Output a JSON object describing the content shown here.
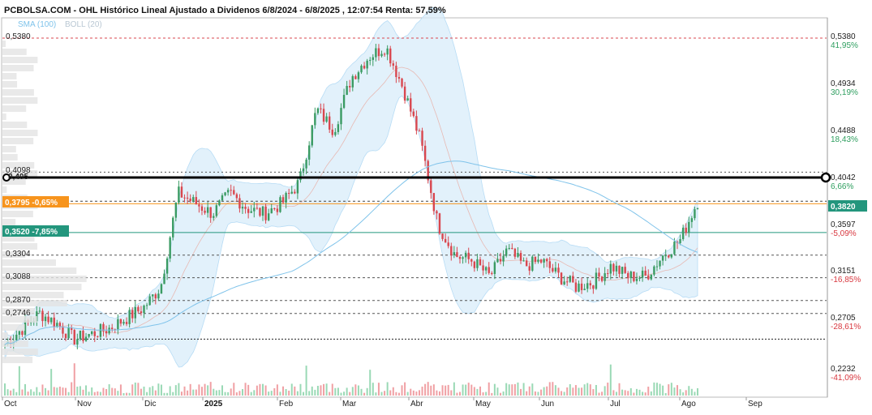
{
  "title": "PCBOLSA.COM - OHL Histórico Lineal Ajustado a Dividenos 6/8/2024 - 6/8/2025 , 12:07:54 Renta: 57,59%",
  "legend": {
    "sma": "SMA (100)",
    "boll": "BOLL (20)"
  },
  "colors": {
    "up": "#3a9b63",
    "down": "#d9474f",
    "band": "#d8ecfa",
    "sma": "#7fc3ea",
    "midband": "#e7b9b3",
    "orange": "#f7941d",
    "teal": "#23967d",
    "volUp": "#9ad9b5",
    "volDown": "#f0a0a4"
  },
  "chart_data": {
    "type": "candlestick",
    "period": {
      "start": "6/8/2024",
      "end": "6/8/2025"
    },
    "y_range": [
      0.22,
      0.56
    ],
    "right_axis": [
      {
        "value": "0,5380",
        "pct": "41,95%",
        "sign": "up"
      },
      {
        "value": "0,4934",
        "pct": "30,19%",
        "sign": "up"
      },
      {
        "value": "0,4488",
        "pct": "18,43%",
        "sign": "up"
      },
      {
        "value": "0,4042",
        "pct": "6,66%",
        "sign": "up"
      },
      {
        "value": "0,3597",
        "pct": "-5,09%",
        "sign": "down"
      },
      {
        "value": "0,3151",
        "pct": "-16,85%",
        "sign": "down"
      },
      {
        "value": "0,2705",
        "pct": "-28,61%",
        "sign": "down"
      },
      {
        "value": "0,2232",
        "pct": "-41,09%",
        "sign": "down"
      }
    ],
    "left_levels": [
      "0,5380",
      "0,4098",
      "0,405",
      "0,3304",
      "0,3088",
      "0,2870",
      "0,2746"
    ],
    "current_price": "0,3820",
    "tag_orange": "0,3795 -0,65%",
    "tag_teal": "0,3520 -7,85%",
    "months": [
      {
        "label": "Oct"
      },
      {
        "label": "Nov"
      },
      {
        "label": "Dic"
      },
      {
        "label": "2025",
        "bold": true
      },
      {
        "label": "Feb"
      },
      {
        "label": "Mar"
      },
      {
        "label": "Abr"
      },
      {
        "label": "May"
      },
      {
        "label": "Jun"
      },
      {
        "label": "Jul"
      },
      {
        "label": "Ago"
      },
      {
        "label": "Sep"
      }
    ],
    "ohlc_anchor_prices": [
      0.245,
      0.26,
      0.275,
      0.265,
      0.25,
      0.255,
      0.26,
      0.27,
      0.28,
      0.3,
      0.39,
      0.38,
      0.37,
      0.39,
      0.375,
      0.37,
      0.38,
      0.4,
      0.47,
      0.45,
      0.5,
      0.52,
      0.53,
      0.49,
      0.44,
      0.36,
      0.33,
      0.325,
      0.31,
      0.335,
      0.32,
      0.325,
      0.31,
      0.3,
      0.305,
      0.32,
      0.31,
      0.31,
      0.33,
      0.345,
      0.382
    ]
  }
}
